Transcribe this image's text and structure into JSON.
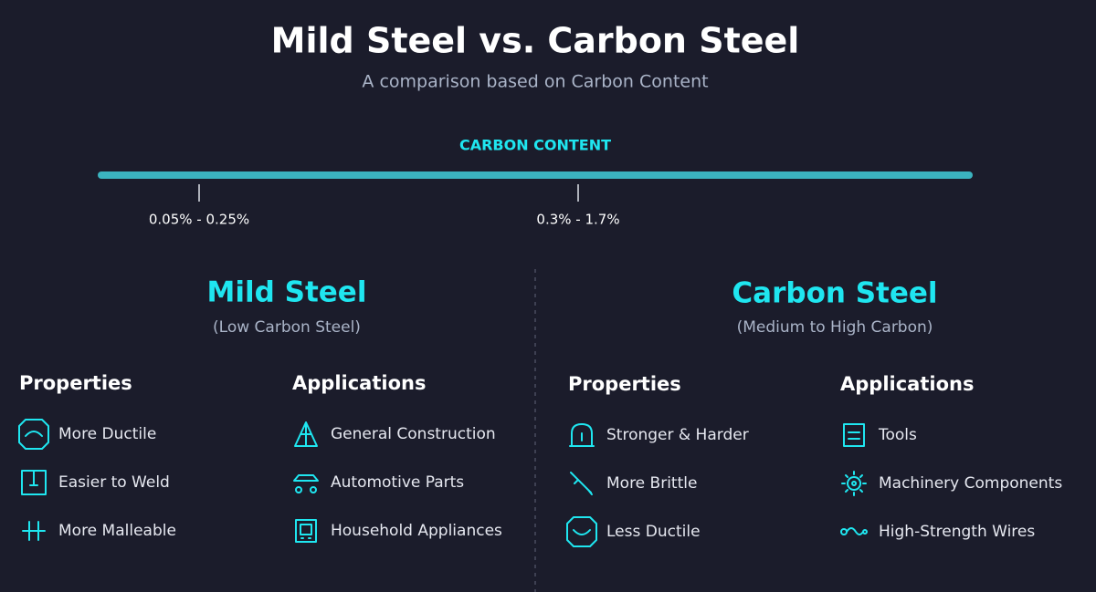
{
  "header": {
    "title": "Mild Steel vs. Carbon Steel",
    "subtitle": "A comparison based on Carbon Content"
  },
  "scale": {
    "label": "CARBON CONTENT",
    "ranges": [
      "0.05% - 0.25%",
      "0.3% - 1.7%"
    ]
  },
  "columns": [
    {
      "title": "Mild Steel",
      "subtitle": "(Low Carbon Steel)",
      "properties": {
        "heading": "Properties",
        "items": [
          "More Ductile",
          "Easier to Weld",
          "More Malleable"
        ]
      },
      "applications": {
        "heading": "Applications",
        "items": [
          "General Construction",
          "Automotive Parts",
          "Household Appliances"
        ]
      }
    },
    {
      "title": "Carbon Steel",
      "subtitle": "(Medium to High Carbon)",
      "properties": {
        "heading": "Properties",
        "items": [
          "Stronger & Harder",
          "More Brittle",
          "Less Ductile"
        ]
      },
      "applications": {
        "heading": "Applications",
        "items": [
          "Tools",
          "Machinery Components",
          "High-Strength Wires"
        ]
      }
    }
  ]
}
